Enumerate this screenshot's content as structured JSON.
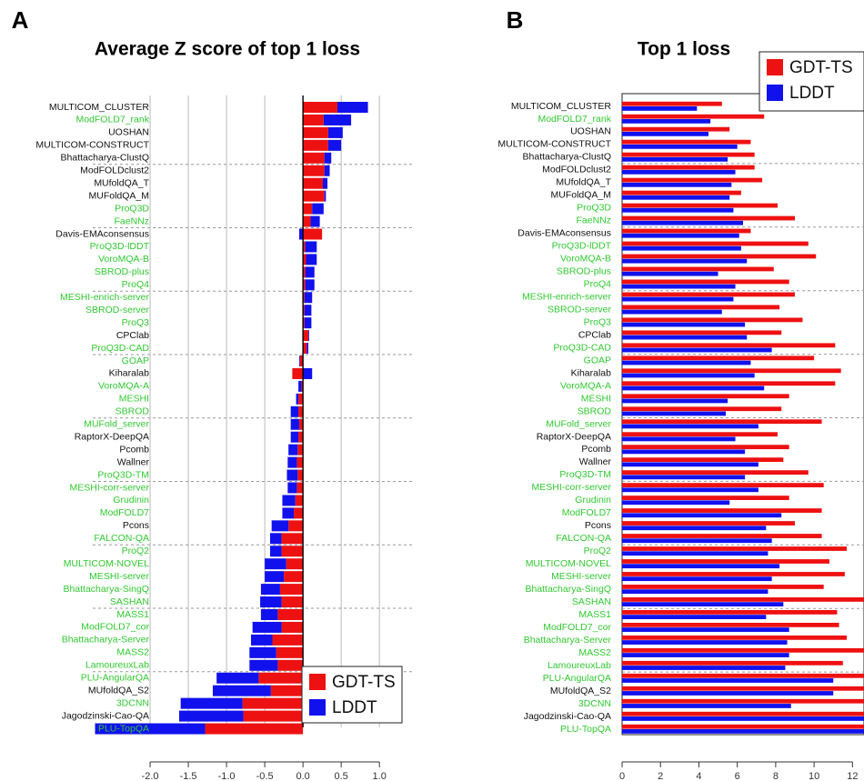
{
  "chart_data": [
    {
      "type": "stacked_barh",
      "panel": "A",
      "title": "Average Z score of top 1 loss",
      "categories": [
        "MULTICOM_CLUSTER",
        "ModFOLD7_rank",
        "UOSHAN",
        "MULTICOM-CONSTRUCT",
        "Bhattacharya-ClustQ",
        "ModFOLDclust2",
        "MUfoldQA_T",
        "MUFoldQA_M",
        "ProQ3D",
        "FaeNNz",
        "Davis-EMAconsensus",
        "ProQ3D-lDDT",
        "VoroMQA-B",
        "SBROD-plus",
        "ProQ4",
        "MESHI-enrich-server",
        "SBROD-server",
        "ProQ3",
        "CPClab",
        "ProQ3D-CAD",
        "GOAP",
        "Kiharalab",
        "VoroMQA-A",
        "MESHI",
        "SBROD",
        "MUFold_server",
        "RaptorX-DeepQA",
        "Pcomb",
        "Wallner",
        "ProQ3D-TM",
        "MESHI-corr-server",
        "Grudinin",
        "ModFOLD7",
        "Pcons",
        "FALCON-QA",
        "ProQ2",
        "MULTICOM-NOVEL",
        "MESHI-server",
        "Bhattacharya-SingQ",
        "SASHAN",
        "MASS1",
        "ModFOLD7_cor",
        "Bhattacharya-Server",
        "MASS2",
        "LamoureuxLab",
        "PLU-AngularQA",
        "MUfoldQA_S2",
        "3DCNN",
        "Jagodzinski-Cao-QA",
        "PLU-TopQA"
      ],
      "label_colors": [
        "#111",
        "#32c832",
        "#111",
        "#111",
        "#111",
        "#111",
        "#111",
        "#111",
        "#32c832",
        "#32c832",
        "#111",
        "#32c832",
        "#32c832",
        "#32c832",
        "#32c832",
        "#32c832",
        "#32c832",
        "#32c832",
        "#111",
        "#32c832",
        "#32c832",
        "#111",
        "#32c832",
        "#32c832",
        "#32c832",
        "#32c832",
        "#111",
        "#111",
        "#111",
        "#32c832",
        "#32c832",
        "#32c832",
        "#32c832",
        "#111",
        "#32c832",
        "#32c832",
        "#32c832",
        "#32c832",
        "#32c832",
        "#32c832",
        "#32c832",
        "#32c832",
        "#32c832",
        "#32c832",
        "#32c832",
        "#32c832",
        "#111",
        "#32c832",
        "#111",
        "#32c832"
      ],
      "series": [
        {
          "name": "GDT-TS",
          "color": "#ee1111",
          "values": [
            0.45,
            0.27,
            0.33,
            0.33,
            0.28,
            0.28,
            0.26,
            0.28,
            0.12,
            0.1,
            0.25,
            0.03,
            0.04,
            0.03,
            0.03,
            0.02,
            0.02,
            0.02,
            0.07,
            0.05,
            -0.04,
            -0.14,
            -0.02,
            -0.06,
            -0.06,
            -0.05,
            -0.06,
            -0.07,
            -0.08,
            -0.07,
            -0.08,
            -0.1,
            -0.12,
            -0.19,
            -0.28,
            -0.28,
            -0.22,
            -0.25,
            -0.3,
            -0.28,
            -0.33,
            -0.28,
            -0.4,
            -0.35,
            -0.33,
            -0.58,
            -0.42,
            -0.79,
            -0.78,
            -1.28
          ]
        },
        {
          "name": "LDDT",
          "color": "#1111ee",
          "values": [
            0.4,
            0.36,
            0.19,
            0.17,
            0.09,
            0.07,
            0.06,
            0.02,
            0.15,
            0.12,
            -0.05,
            0.15,
            0.14,
            0.12,
            0.12,
            0.1,
            0.09,
            0.09,
            0.01,
            0.02,
            -0.01,
            0.12,
            -0.04,
            -0.03,
            -0.1,
            -0.11,
            -0.1,
            -0.12,
            -0.12,
            -0.14,
            -0.12,
            -0.17,
            -0.15,
            -0.22,
            -0.15,
            -0.15,
            -0.28,
            -0.25,
            -0.25,
            -0.28,
            -0.22,
            -0.38,
            -0.28,
            -0.35,
            -0.37,
            -0.55,
            -0.76,
            -0.81,
            -0.84,
            -1.44
          ]
        }
      ],
      "xlim": [
        -2.75,
        1.45
      ],
      "xticks": [
        {
          "value": -2,
          "label": "-2.0"
        },
        -1.5,
        {
          "value": -1,
          "label": "-1.0"
        },
        -0.5,
        {
          "value": 0,
          "label": "0.0"
        },
        0.5,
        {
          "value": 1,
          "label": "1.0"
        }
      ],
      "grid": true,
      "box": false,
      "legend": "bottom-right"
    },
    {
      "type": "grouped_barh",
      "panel": "B",
      "title": "Top 1 loss",
      "categories": [
        "MULTICOM_CLUSTER",
        "ModFOLD7_rank",
        "UOSHAN",
        "MULTICOM-CONSTRUCT",
        "Bhattacharya-ClustQ",
        "ModFOLDclust2",
        "MUfoldQA_T",
        "MUFoldQA_M",
        "ProQ3D",
        "FaeNNz",
        "Davis-EMAconsensus",
        "ProQ3D-lDDT",
        "VoroMQA-B",
        "SBROD-plus",
        "ProQ4",
        "MESHI-enrich-server",
        "SBROD-server",
        "ProQ3",
        "CPClab",
        "ProQ3D-CAD",
        "GOAP",
        "Kiharalab",
        "VoroMQA-A",
        "MESHI",
        "SBROD",
        "MUFold_server",
        "RaptorX-DeepQA",
        "Pcomb",
        "Wallner",
        "ProQ3D-TM",
        "MESHI-corr-server",
        "Grudinin",
        "ModFOLD7",
        "Pcons",
        "FALCON-QA",
        "ProQ2",
        "MULTICOM-NOVEL",
        "MESHI-server",
        "Bhattacharya-SingQ",
        "SASHAN",
        "MASS1",
        "ModFOLD7_cor",
        "Bhattacharya-Server",
        "MASS2",
        "LamoureuxLab",
        "PLU-AngularQA",
        "MUfoldQA_S2",
        "3DCNN",
        "Jagodzinski-Cao-QA",
        "PLU-TopQA"
      ],
      "label_colors": [
        "#111",
        "#32c832",
        "#111",
        "#111",
        "#111",
        "#111",
        "#111",
        "#111",
        "#32c832",
        "#32c832",
        "#111",
        "#32c832",
        "#32c832",
        "#32c832",
        "#32c832",
        "#32c832",
        "#32c832",
        "#32c832",
        "#111",
        "#32c832",
        "#32c832",
        "#111",
        "#32c832",
        "#32c832",
        "#32c832",
        "#32c832",
        "#111",
        "#111",
        "#111",
        "#32c832",
        "#32c832",
        "#32c832",
        "#32c832",
        "#111",
        "#32c832",
        "#32c832",
        "#32c832",
        "#32c832",
        "#32c832",
        "#32c832",
        "#32c832",
        "#32c832",
        "#32c832",
        "#32c832",
        "#32c832",
        "#32c832",
        "#111",
        "#32c832",
        "#111",
        "#32c832"
      ],
      "series": [
        {
          "name": "GDT-TS",
          "color": "#ee1111",
          "values": [
            5.2,
            7.4,
            5.6,
            6.7,
            6.9,
            6.9,
            7.3,
            6.2,
            8.1,
            9.0,
            6.7,
            9.7,
            10.1,
            7.9,
            8.7,
            9.0,
            8.2,
            9.4,
            8.3,
            11.1,
            10.0,
            11.4,
            11.1,
            8.7,
            8.3,
            10.4,
            8.1,
            8.7,
            8.4,
            9.7,
            10.5,
            8.7,
            10.4,
            9.0,
            10.4,
            11.7,
            10.8,
            11.6,
            10.5,
            12.8,
            11.2,
            11.3,
            11.7,
            12.6,
            11.5,
            12.7,
            12.7,
            12.9,
            13.0,
            13.0
          ]
        },
        {
          "name": "LDDT",
          "color": "#1111ee",
          "values": [
            3.9,
            4.6,
            4.5,
            6.0,
            5.5,
            5.9,
            5.7,
            5.6,
            5.8,
            6.3,
            6.1,
            6.2,
            6.5,
            5.0,
            5.9,
            5.8,
            5.2,
            6.4,
            6.5,
            7.8,
            6.7,
            6.9,
            7.4,
            5.5,
            5.4,
            7.1,
            5.9,
            6.4,
            7.1,
            6.4,
            7.1,
            5.6,
            8.3,
            7.5,
            7.8,
            7.6,
            8.2,
            7.8,
            7.6,
            8.4,
            7.5,
            8.7,
            8.6,
            8.7,
            8.5,
            11.0,
            11.0,
            8.8,
            12.8,
            12.9
          ]
        }
      ],
      "xlim": [
        0,
        12.6
      ],
      "xticks": [
        0,
        2,
        4,
        6,
        8,
        10,
        12
      ],
      "grid": false,
      "box": true,
      "legend": "top-right"
    }
  ]
}
